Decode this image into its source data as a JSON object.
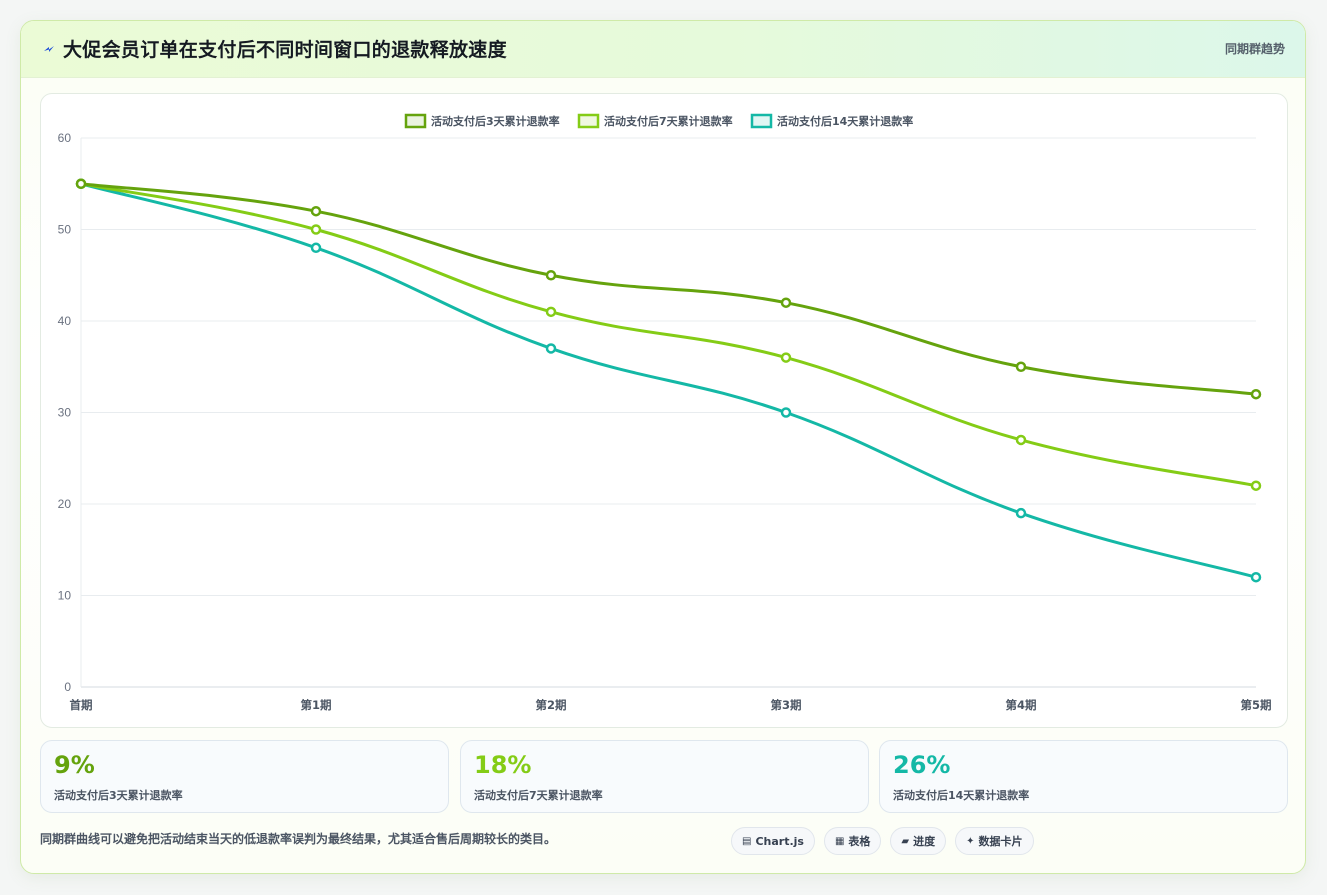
{
  "header": {
    "title": "大促会员订单在支付后不同时间窗口的退款释放速度",
    "tag": "同期群趋势"
  },
  "colors": {
    "series3": "#65a30d",
    "series7": "#84cc16",
    "series14": "#14b8a6"
  },
  "chart_data": {
    "type": "line",
    "title": "",
    "xlabel": "",
    "ylabel": "",
    "categories": [
      "首期",
      "第1期",
      "第2期",
      "第3期",
      "第4期",
      "第5期"
    ],
    "ylim": [
      0,
      60
    ],
    "yticks": [
      0,
      10,
      20,
      30,
      40,
      50,
      60
    ],
    "grid": true,
    "legend_position": "top-center",
    "series": [
      {
        "name": "活动支付后3天累计退款率",
        "color": "#65a30d",
        "values": [
          55,
          52,
          45,
          42,
          35,
          32
        ]
      },
      {
        "name": "活动支付后7天累计退款率",
        "color": "#84cc16",
        "values": [
          55,
          50,
          41,
          36,
          27,
          22
        ]
      },
      {
        "name": "活动支付后14天累计退款率",
        "color": "#14b8a6",
        "values": [
          55,
          48,
          37,
          30,
          19,
          12
        ]
      }
    ]
  },
  "stats": [
    {
      "value": "9%",
      "label": "活动支付后3天累计退款率",
      "color": "#65a30d"
    },
    {
      "value": "18%",
      "label": "活动支付后7天累计退款率",
      "color": "#84cc16"
    },
    {
      "value": "26%",
      "label": "活动支付后14天累计退款率",
      "color": "#14b8a6"
    }
  ],
  "footer": {
    "note": "同期群曲线可以避免把活动结束当天的低退款率误判为最终结果，尤其适合售后周期较长的类目。",
    "chips": [
      {
        "icon": "chart-icon",
        "glyph": "▤",
        "label": "Chart.js"
      },
      {
        "icon": "table-icon",
        "glyph": "▦",
        "label": "表格"
      },
      {
        "icon": "progress-icon",
        "glyph": "▰",
        "label": "进度"
      },
      {
        "icon": "sparkle-icon",
        "glyph": "✦",
        "label": "数据卡片"
      }
    ]
  }
}
